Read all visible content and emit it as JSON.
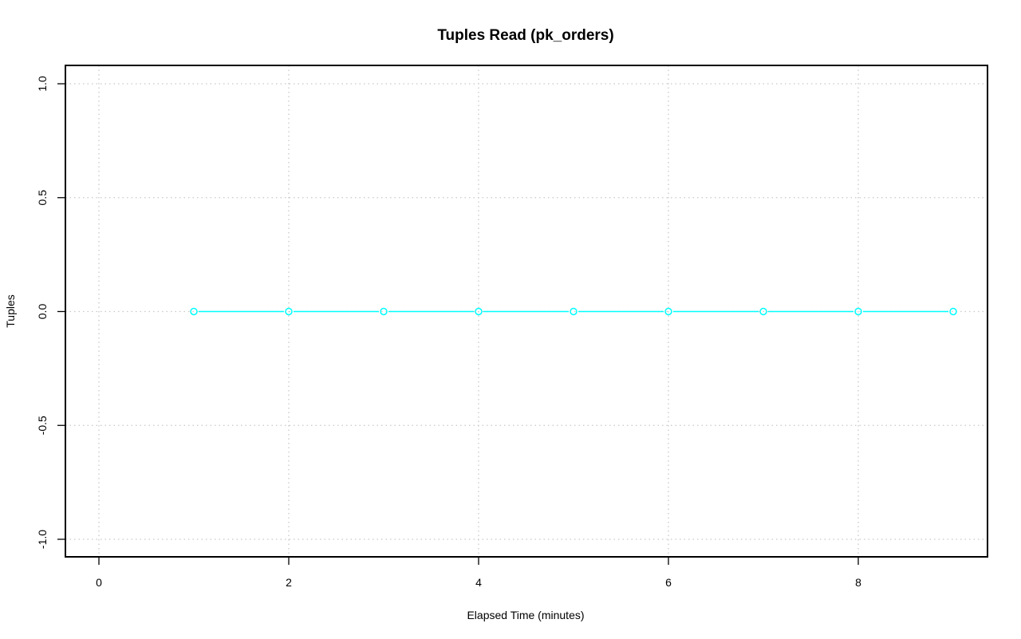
{
  "chart_data": {
    "type": "line",
    "title": "Tuples Read (pk_orders)",
    "xlabel": "Elapsed Time (minutes)",
    "ylabel": "Tuples",
    "xlim": [
      -0.35,
      9.35
    ],
    "ylim": [
      -1.08,
      1.08
    ],
    "xticks": [
      0,
      2,
      4,
      6,
      8
    ],
    "yticks": [
      -1.0,
      -0.5,
      0.0,
      0.5,
      1.0
    ],
    "xtick_labels": [
      "0",
      "2",
      "4",
      "6",
      "8"
    ],
    "ytick_labels": [
      "-1.0",
      "-0.5",
      "0.0",
      "0.5",
      "1.0"
    ],
    "grid": true,
    "grid_x": [
      0,
      2,
      4,
      6,
      8
    ],
    "series": [
      {
        "color": "#00ffff",
        "marker": "open-circle",
        "x": [
          1,
          2,
          3,
          4,
          5,
          6,
          7,
          8,
          9
        ],
        "y": [
          0,
          0,
          0,
          0,
          0,
          0,
          0,
          0,
          0
        ]
      }
    ]
  }
}
